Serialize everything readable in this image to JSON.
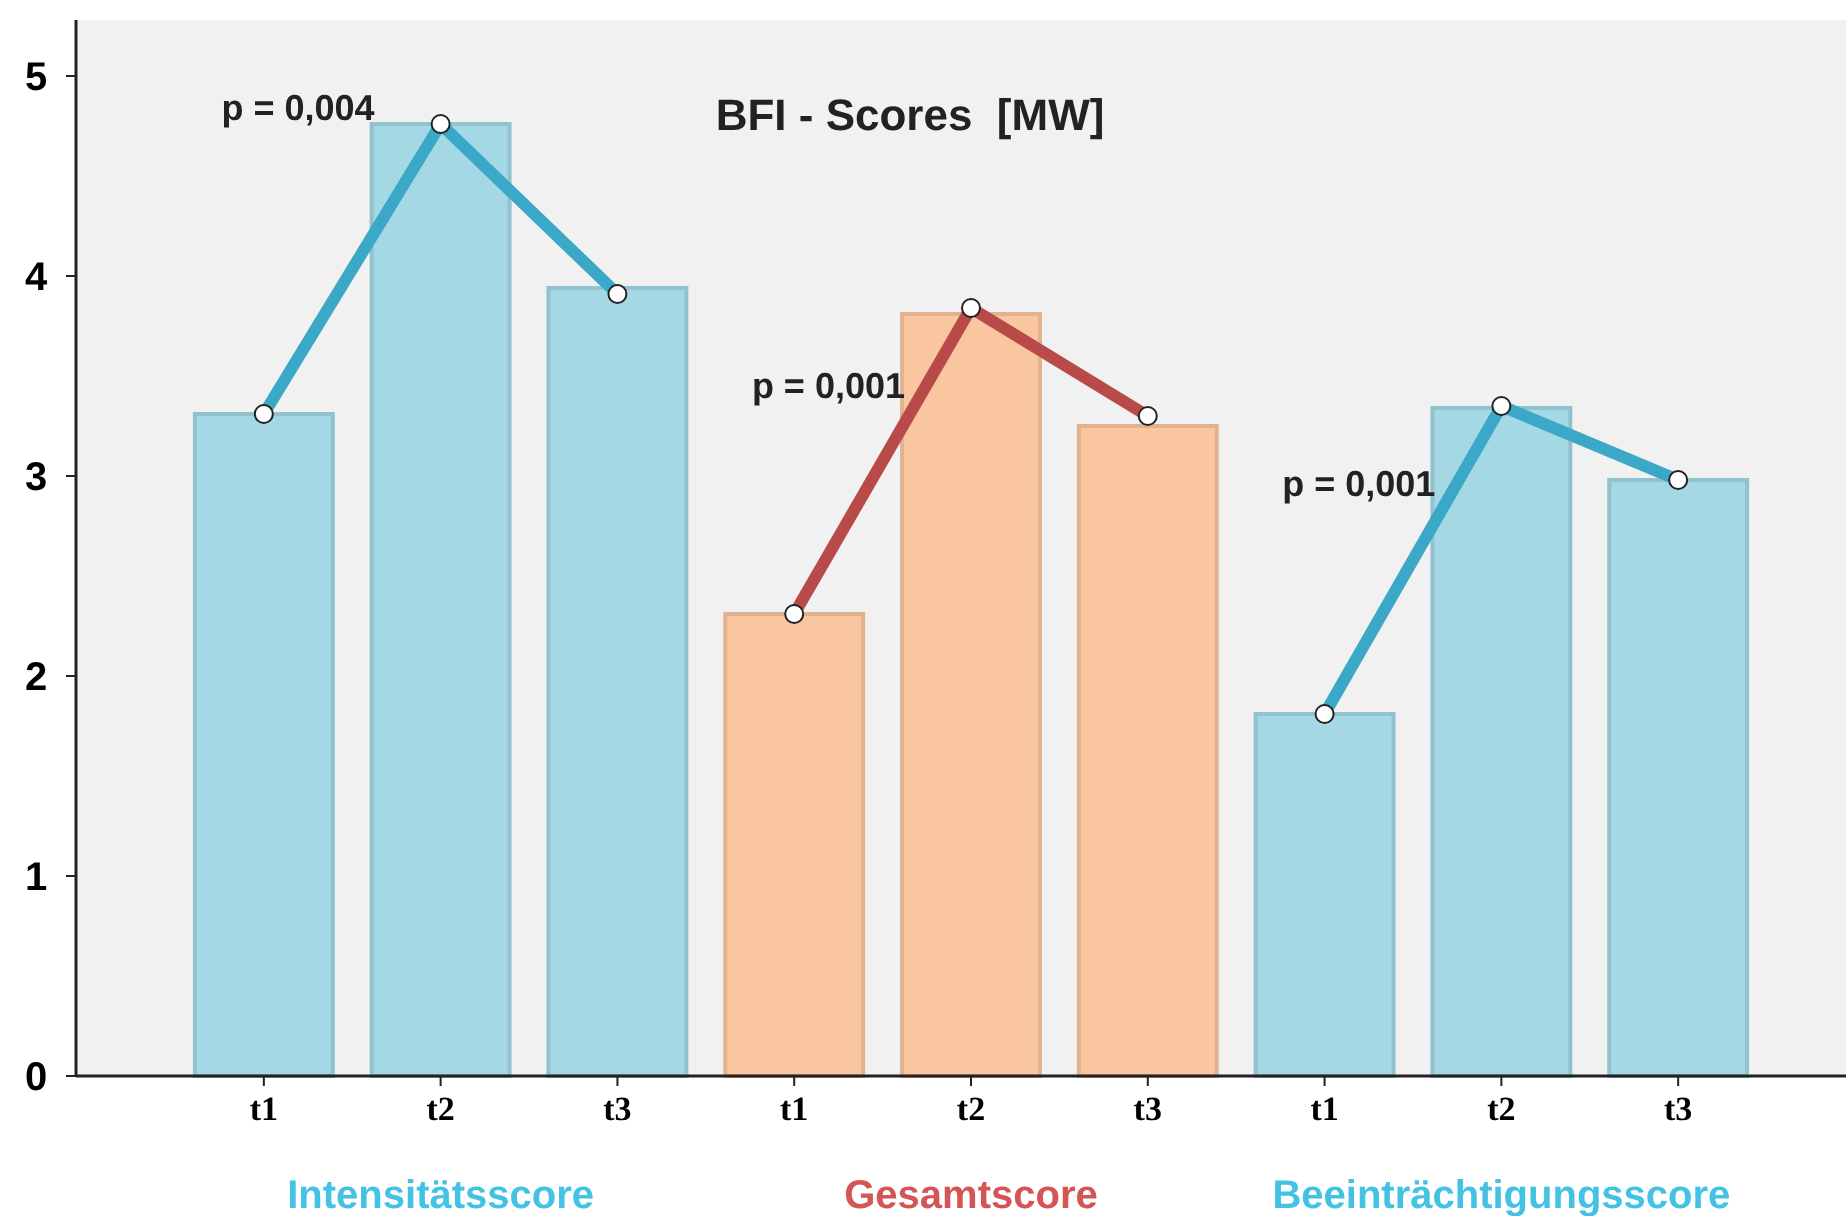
{
  "chart_data": {
    "type": "bar",
    "title": "BFI - Scores  [MW]",
    "categories": [
      "t1",
      "t2",
      "t3",
      "t1",
      "t2",
      "t3",
      "t1",
      "t2",
      "t3"
    ],
    "series": [
      {
        "name": "Intensitätsscore",
        "color": "#a3d8e4",
        "values": [
          3.31,
          4.76,
          3.94,
          null,
          null,
          null,
          null,
          null,
          null
        ]
      },
      {
        "name": "Gesamtscore",
        "color": "#f9c6a0",
        "values": [
          null,
          null,
          null,
          2.31,
          3.81,
          3.25,
          null,
          null,
          null
        ]
      },
      {
        "name": "Beeinträchtigungsscore",
        "color": "#a3d8e4",
        "values": [
          null,
          null,
          null,
          null,
          null,
          null,
          1.81,
          3.34,
          2.98
        ]
      },
      {
        "type": "line",
        "color": "#3aa8c6",
        "values": [
          3.31,
          4.76,
          3.91,
          null,
          null,
          null,
          null,
          null,
          null
        ]
      },
      {
        "type": "line",
        "color": "#b84a4a",
        "values": [
          null,
          null,
          null,
          2.31,
          3.84,
          3.3,
          null,
          null,
          null
        ]
      },
      {
        "type": "line",
        "color": "#3aa8c6",
        "values": [
          null,
          null,
          null,
          null,
          null,
          null,
          1.81,
          3.35,
          2.98
        ]
      }
    ],
    "annotations": [
      "p = 0,004",
      "p = 0,001",
      "p = 0,001"
    ],
    "ylim": [
      0,
      5.28
    ],
    "yticks": [
      0,
      1,
      2,
      3,
      4,
      5
    ],
    "grid": false,
    "marker": "circle",
    "line_style": "solid"
  }
}
